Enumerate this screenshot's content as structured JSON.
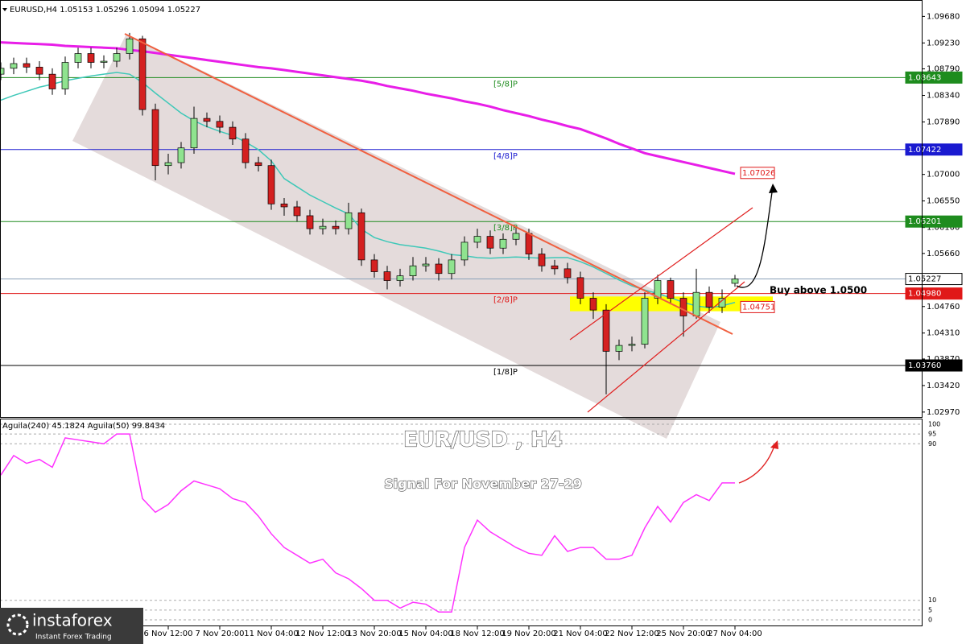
{
  "chart_data": [
    {
      "type": "candlestick",
      "header": "EURUSD,H4  1.05153 1.05296 1.05094 1.05227",
      "title": "EUR/USD , H4",
      "subtitle": "Signal For November 27-29",
      "annotation": "Buy above 1.0500",
      "categories": [
        null,
        null,
        null,
        null,
        null,
        null,
        null,
        null,
        null,
        null,
        null,
        null,
        null,
        "6 Nov 12:00",
        null,
        null,
        null,
        "7 Nov 20:00",
        null,
        null,
        null,
        "11 Nov 04:00",
        null,
        null,
        null,
        "12 Nov 12:00",
        null,
        null,
        null,
        "13 Nov 20:00",
        null,
        null,
        null,
        "15 Nov 04:00",
        null,
        null,
        null,
        "18 Nov 12:00",
        null,
        null,
        null,
        "19 Nov 20:00",
        null,
        null,
        null,
        "21 Nov 04:00",
        null,
        null,
        null,
        "22 Nov 12:00",
        null,
        null,
        null,
        "25 Nov 20:00",
        null,
        null,
        null,
        "27 Nov 04:00"
      ],
      "open": [
        1.087,
        1.088,
        1.0888,
        1.0882,
        1.087,
        1.0845,
        1.089,
        1.0905,
        1.089,
        1.0892,
        1.0905,
        1.093,
        1.081,
        1.0715,
        1.072,
        1.0745,
        1.0795,
        1.079,
        1.078,
        1.076,
        1.072,
        1.0715,
        1.065,
        1.0645,
        1.063,
        1.0608,
        1.0612,
        1.0608,
        1.0635,
        1.0555,
        1.0535,
        1.052,
        1.0528,
        1.0545,
        1.0548,
        1.0532,
        1.0555,
        1.0585,
        1.0595,
        1.0575,
        1.059,
        1.06,
        1.0565,
        1.0545,
        1.054,
        1.0525,
        1.049,
        1.047,
        1.04,
        1.041,
        1.0412,
        1.049,
        1.052,
        1.049,
        1.046,
        1.05,
        1.0475,
        1.05153
      ],
      "high": [
        1.089,
        1.0898,
        1.0898,
        1.0892,
        1.088,
        1.09,
        1.0915,
        1.0915,
        1.0902,
        1.0915,
        1.094,
        1.0935,
        1.082,
        1.0735,
        1.0755,
        1.0815,
        1.0805,
        1.08,
        1.079,
        1.077,
        1.073,
        1.0725,
        1.066,
        1.0655,
        1.064,
        1.0625,
        1.0622,
        1.0652,
        1.0642,
        1.0565,
        1.0545,
        1.054,
        1.056,
        1.056,
        1.0558,
        1.0565,
        1.0595,
        1.0608,
        1.0605,
        1.06,
        1.0612,
        1.0608,
        1.0575,
        1.0555,
        1.055,
        1.0535,
        1.05,
        1.048,
        1.042,
        1.0425,
        1.05,
        1.053,
        1.0525,
        1.05,
        1.054,
        1.051,
        1.0505,
        1.05296
      ],
      "low": [
        1.086,
        1.087,
        1.0872,
        1.086,
        1.0835,
        1.0835,
        1.088,
        1.088,
        1.088,
        1.0882,
        1.0895,
        1.08,
        1.069,
        1.07,
        1.071,
        1.0735,
        1.078,
        1.077,
        1.075,
        1.071,
        1.0705,
        1.064,
        1.063,
        1.062,
        1.0598,
        1.0598,
        1.0598,
        1.0598,
        1.0545,
        1.0525,
        1.0505,
        1.051,
        1.052,
        1.0535,
        1.052,
        1.0522,
        1.0545,
        1.0575,
        1.0565,
        1.0565,
        1.058,
        1.0555,
        1.0535,
        1.053,
        1.0515,
        1.048,
        1.0455,
        1.0327,
        1.0385,
        1.04,
        1.0405,
        1.048,
        1.048,
        1.0425,
        1.0455,
        1.0465,
        1.0465,
        1.05094
      ],
      "close": [
        1.088,
        1.0888,
        1.0882,
        1.087,
        1.0845,
        1.089,
        1.0905,
        1.089,
        1.0892,
        1.0905,
        1.093,
        1.081,
        1.0715,
        1.072,
        1.0745,
        1.0795,
        1.079,
        1.078,
        1.076,
        1.072,
        1.0715,
        1.065,
        1.0645,
        1.063,
        1.0608,
        1.0612,
        1.0608,
        1.0635,
        1.0555,
        1.0535,
        1.052,
        1.0528,
        1.0545,
        1.0548,
        1.0532,
        1.0555,
        1.0585,
        1.0595,
        1.0575,
        1.059,
        1.06,
        1.0565,
        1.0545,
        1.054,
        1.0525,
        1.049,
        1.047,
        1.04,
        1.041,
        1.0412,
        1.049,
        1.052,
        1.049,
        1.046,
        1.05,
        1.0475,
        1.049,
        1.05227
      ],
      "up_color": "#8fe38f",
      "down_color": "#d42020",
      "lines": [
        {
          "color": "#e81ee8",
          "values": [
            1.0924,
            1.0923,
            1.0922,
            1.0921,
            1.092,
            1.0918,
            1.0917,
            1.0916,
            1.0915,
            1.0914,
            1.0911,
            1.0909,
            1.0906,
            1.0903,
            1.09,
            1.0897,
            1.0894,
            1.0891,
            1.0888,
            1.0885,
            1.0882,
            1.088,
            1.0877,
            1.0874,
            1.0871,
            1.0868,
            1.0865,
            1.0862,
            1.0859,
            1.0855,
            1.085,
            1.0846,
            1.0842,
            1.0837,
            1.0833,
            1.0829,
            1.0824,
            1.082,
            1.0815,
            1.0809,
            1.0804,
            1.0799,
            1.0793,
            1.0788,
            1.0782,
            1.0777,
            1.0769,
            1.0761,
            1.0752,
            1.0744,
            1.0736,
            1.0731,
            1.0726,
            1.0721,
            1.0716,
            1.0711,
            1.0706,
            1.0701
          ]
        },
        {
          "color": "#3ec8b8",
          "values": [
            1.0826,
            1.0834,
            1.0841,
            1.0848,
            1.0853,
            1.0859,
            1.0863,
            1.0867,
            1.087,
            1.0873,
            1.087,
            1.0856,
            1.0838,
            1.0821,
            1.0804,
            1.0791,
            1.0781,
            1.0773,
            1.0766,
            1.0755,
            1.0742,
            1.0723,
            1.0693,
            1.0679,
            1.0665,
            1.0654,
            1.0643,
            1.0633,
            1.0607,
            1.0593,
            1.0586,
            1.0581,
            1.0578,
            1.0575,
            1.057,
            1.0564,
            1.0562,
            1.0559,
            1.0558,
            1.0559,
            1.056,
            1.0559,
            1.0558,
            1.0559,
            1.0559,
            1.0552,
            1.0543,
            1.0532,
            1.0521,
            1.0511,
            1.0504,
            1.0498,
            1.0491,
            1.0483,
            1.0477,
            1.0474,
            1.0477,
            1.0483
          ]
        }
      ],
      "levels": [
        {
          "value": 1.08643,
          "label": "1.08643",
          "murrey": "[5/8]P",
          "color": "#1e8c1e"
        },
        {
          "value": 1.07422,
          "label": "1.07422",
          "murrey": "[4/8]P",
          "color": "#1a1ad0"
        },
        {
          "value": 1.06201,
          "label": "1.06201",
          "murrey": "[3/8]P",
          "color": "#1e8c1e"
        },
        {
          "value": 1.05227,
          "label": "1.05227",
          "color": "#8aa0b8"
        },
        {
          "value": 1.0498,
          "label": "1.04980",
          "murrey": "[2/8]P",
          "color": "#e01818"
        },
        {
          "value": 1.0376,
          "label": "1.03760",
          "murrey": "[1/8]P",
          "color": "#000000"
        }
      ],
      "price_tags": [
        {
          "value": 1.07026,
          "label": "1.07026",
          "color": "#e01818"
        },
        {
          "value": 1.04751,
          "label": "1.04751",
          "color": "#e01818"
        }
      ],
      "zone": [
        1.0468,
        1.0493
      ],
      "zone_color": "#ffff00",
      "ylim": [
        1.029,
        1.0989
      ],
      "yticks": [
        {
          "value": 1.0968,
          "label": "1.09680"
        },
        {
          "value": 1.0923,
          "label": "1.09230"
        },
        {
          "value": 1.0879,
          "label": "1.08790"
        },
        {
          "value": 1.0834,
          "label": "1.08340"
        },
        {
          "value": 1.0789,
          "label": "1.07890"
        },
        {
          "value": 1.07,
          "label": "1.07000"
        },
        {
          "value": 1.0655,
          "label": "1.06550"
        },
        {
          "value": 1.061,
          "label": "1.06100"
        },
        {
          "value": 1.0566,
          "label": "1.05660"
        },
        {
          "value": 1.0476,
          "label": "1.04760"
        },
        {
          "value": 1.0431,
          "label": "1.04310"
        },
        {
          "value": 1.0387,
          "label": "1.03870"
        },
        {
          "value": 1.0342,
          "label": "1.03420"
        },
        {
          "value": 1.0297,
          "label": "1.02970"
        }
      ]
    },
    {
      "type": "line",
      "label": "Aguila(240) 45.1824  Aguila(50) 99.8434",
      "color": "#ff33ff",
      "values": [
        74,
        84,
        80,
        82,
        78,
        93,
        92,
        91,
        90,
        95,
        95,
        62,
        55,
        59,
        66,
        71,
        69,
        67,
        62,
        60,
        53,
        44,
        37,
        33,
        29,
        31,
        24,
        21,
        16,
        10,
        10,
        6,
        9,
        8,
        4,
        4,
        37,
        51,
        45,
        41,
        37,
        34,
        33,
        43,
        35,
        37,
        37,
        31,
        31,
        33,
        47,
        58,
        50,
        60,
        64,
        61,
        70,
        70
      ],
      "ylim": [
        0,
        100
      ],
      "yticks": [
        100,
        95,
        90,
        10,
        5,
        0
      ]
    }
  ],
  "logo": {
    "name": "instaforex",
    "tagline": "Instant Forex Trading"
  }
}
